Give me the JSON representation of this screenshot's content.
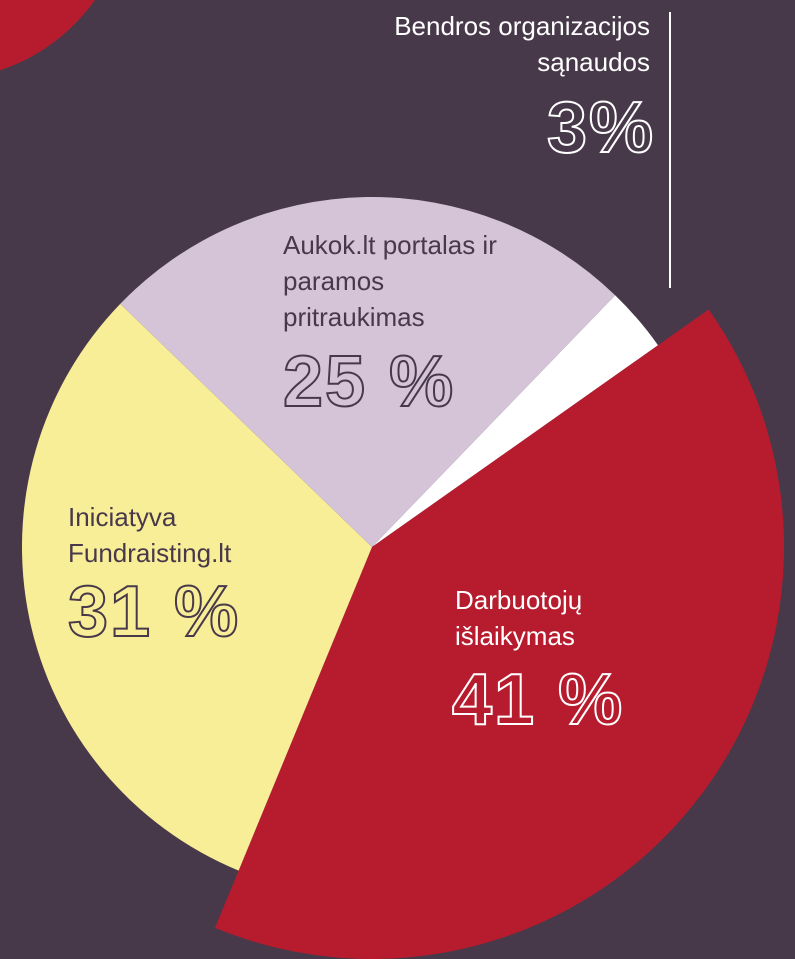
{
  "chart_data": {
    "type": "pie",
    "categories": [
      "Bendros organizacijos sąnaudos",
      "Darbuotojų išlaikymas",
      "Iniciatyva Fundraisting.lt",
      "Aukok.lt portalas ir paramos pritraukimas"
    ],
    "values": [
      3,
      41,
      31,
      25
    ],
    "value_labels": [
      "3%",
      "41 %",
      "31 %",
      "25 %"
    ],
    "colors": [
      "#ffffff",
      "#b71c2e",
      "#f9ee98",
      "#d5c3d8"
    ]
  }
}
